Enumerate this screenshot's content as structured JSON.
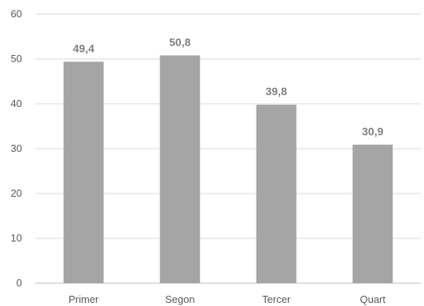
{
  "chart_data": {
    "type": "bar",
    "categories": [
      "Primer",
      "Segon",
      "Tercer",
      "Quart"
    ],
    "values": [
      49.4,
      50.8,
      39.8,
      30.9
    ],
    "value_labels": [
      "49,4",
      "50,8",
      "39,8",
      "30,9"
    ],
    "yticks": [
      "0",
      "10",
      "20",
      "30",
      "40",
      "50",
      "60"
    ],
    "ylim": [
      0,
      60
    ],
    "grid": true,
    "legend": "none",
    "colors": {
      "bar": "#a5a5a5",
      "grid": "#d9d9d9",
      "axis": "#bfbfbf"
    }
  }
}
